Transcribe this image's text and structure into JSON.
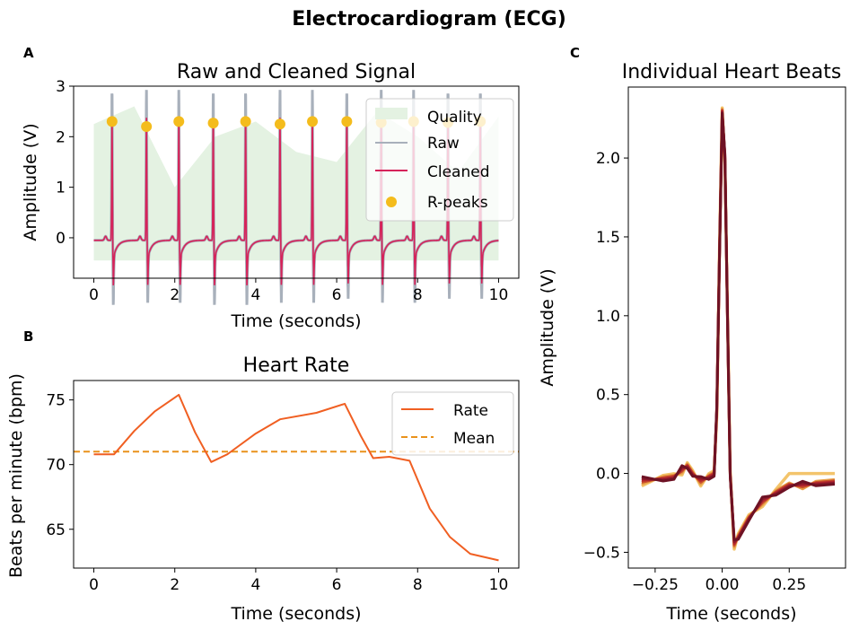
{
  "figure_title": "Electrocardiogram (ECG)",
  "chart_data": [
    {
      "panel": "A",
      "type": "line",
      "title": "Raw and Cleaned Signal",
      "xlabel": "Time (seconds)",
      "ylabel": "Amplitude (V)",
      "xlim": [
        -0.5,
        10.5
      ],
      "ylim": [
        -0.8,
        3.0
      ],
      "xticks": [
        0,
        2,
        4,
        6,
        8,
        10
      ],
      "yticks": [
        0,
        1,
        2,
        3
      ],
      "r_peak_times": [
        0.45,
        1.3,
        2.1,
        2.95,
        3.75,
        4.6,
        5.4,
        6.25,
        7.1,
        7.9,
        8.75,
        9.55
      ],
      "r_peak_values": [
        2.3,
        2.2,
        2.3,
        2.27,
        2.3,
        2.25,
        2.3,
        2.3,
        2.28,
        2.3,
        2.28,
        2.3
      ],
      "quality": {
        "x": [
          0,
          1,
          2,
          3,
          4,
          5,
          6,
          7,
          8,
          9,
          10
        ],
        "top": [
          2.25,
          2.6,
          1.0,
          2.0,
          2.3,
          1.7,
          1.5,
          2.5,
          2.0,
          1.3,
          2.4
        ],
        "bottom": -0.45
      },
      "series": [
        {
          "name": "Quality",
          "color": "#e4f2e2"
        },
        {
          "name": "Raw",
          "color": "#a8b0bb"
        },
        {
          "name": "Cleaned",
          "color": "#d6235a"
        },
        {
          "name": "R-peaks",
          "color": "#f4bc1c"
        }
      ],
      "legend_position": "upper-right"
    },
    {
      "panel": "B",
      "type": "line",
      "title": "Heart Rate",
      "xlabel": "Time (seconds)",
      "ylabel": "Beats per minute (bpm)",
      "xlim": [
        -0.5,
        10.5
      ],
      "ylim": [
        62.0,
        76.5
      ],
      "xticks": [
        0,
        2,
        4,
        6,
        8,
        10
      ],
      "yticks": [
        65,
        70,
        75
      ],
      "series": [
        {
          "name": "Rate",
          "color": "#f05f22",
          "x": [
            0,
            0.5,
            1.0,
            1.5,
            2.1,
            2.5,
            2.9,
            3.3,
            4.0,
            4.6,
            5.5,
            6.2,
            6.6,
            6.9,
            7.3,
            7.8,
            8.3,
            8.8,
            9.3,
            10
          ],
          "y": [
            70.8,
            70.8,
            72.6,
            74.1,
            75.4,
            72.5,
            70.2,
            70.8,
            72.4,
            73.5,
            74.0,
            74.7,
            72.2,
            70.5,
            70.6,
            70.3,
            66.6,
            64.4,
            63.1,
            62.6
          ]
        },
        {
          "name": "Mean",
          "color": "#e9921b",
          "y": 71.0
        }
      ],
      "legend_position": "upper-right"
    },
    {
      "panel": "C",
      "type": "line",
      "title": "Individual Heart Beats",
      "xlabel": "Time (seconds)",
      "ylabel": "Amplitude (V)",
      "xlim": [
        -0.35,
        0.46
      ],
      "ylim": [
        -0.6,
        2.45
      ],
      "xticks": [
        -0.25,
        0.0,
        0.25
      ],
      "xtick_labels": [
        "−0.25",
        "0.00",
        "0.25"
      ],
      "yticks": [
        -0.5,
        0.0,
        0.5,
        1.0,
        1.5,
        2.0
      ],
      "ytick_labels": [
        "−0.5",
        "0.0",
        "0.5",
        "1.0",
        "1.5",
        "2.0"
      ],
      "beat_colors": [
        "#f3c46b",
        "#e8a048",
        "#c9502c",
        "#b3262e",
        "#8e1a2b",
        "#6e1224"
      ],
      "beat_template": {
        "x": [
          -0.3,
          -0.22,
          -0.18,
          -0.15,
          -0.13,
          -0.11,
          -0.08,
          -0.05,
          -0.03,
          -0.02,
          -0.01,
          0.0,
          0.01,
          0.02,
          0.03,
          0.045,
          0.06,
          0.1,
          0.15,
          0.2,
          0.25,
          0.3,
          0.35,
          0.42
        ],
        "y": [
          -0.05,
          -0.03,
          -0.02,
          0.02,
          0.05,
          0.0,
          -0.05,
          -0.02,
          0.0,
          0.4,
          1.4,
          2.3,
          2.0,
          1.0,
          0.0,
          -0.45,
          -0.4,
          -0.28,
          -0.18,
          -0.12,
          -0.07,
          -0.08,
          -0.06,
          -0.05
        ]
      }
    }
  ]
}
